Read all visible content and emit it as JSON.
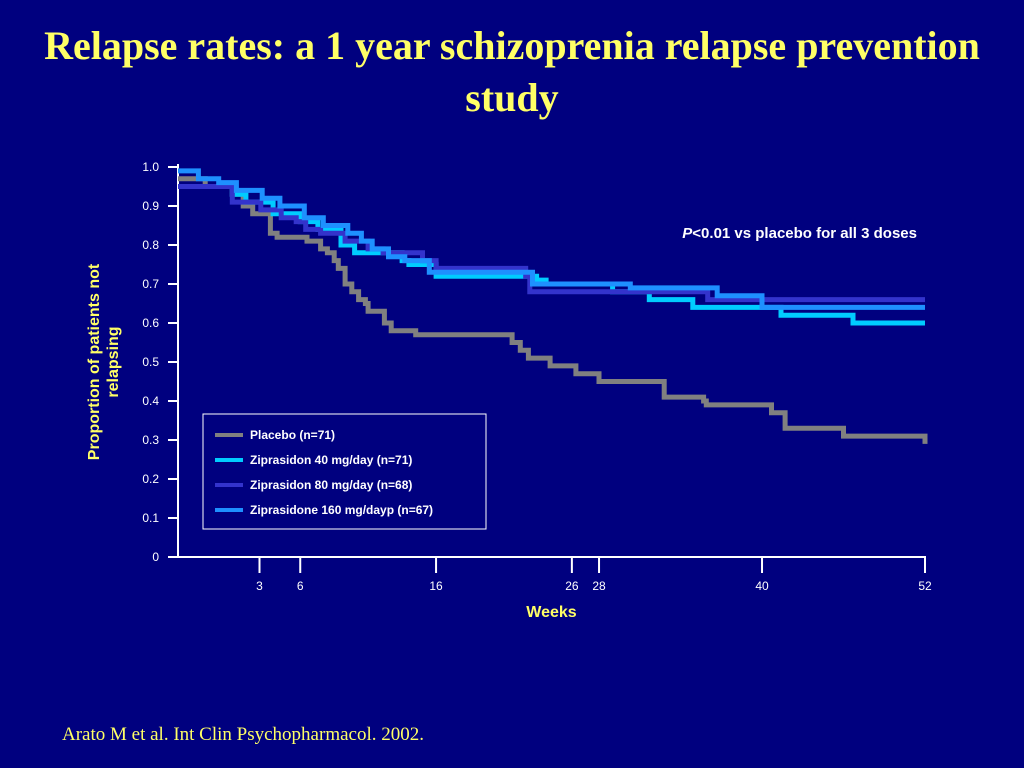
{
  "slide": {
    "title": "Relapse rates: a 1 year schizoprenia relapse prevention study",
    "citation": "Arato M et al. Int Clin Psychopharmacol. 2002."
  },
  "chart_data": {
    "type": "line",
    "step": true,
    "xlabel": "Weeks",
    "ylabel": "Proportion of patients not relapsing",
    "xlim": [
      -3,
      52
    ],
    "ylim": [
      0,
      1.0
    ],
    "x_ticks": [
      3,
      6,
      16,
      26,
      28,
      40,
      52
    ],
    "y_ticks": [
      0,
      0.1,
      0.2,
      0.3,
      0.4,
      0.5,
      0.6,
      0.7,
      0.8,
      0.9,
      1.0
    ],
    "y_tick_labels": [
      "0",
      "0.1",
      "0.2",
      "0.3",
      "0.4",
      "0.5",
      "0.6",
      "0.7",
      "0.8",
      "0.9",
      "1.0"
    ],
    "grid": false,
    "legend_position": "lower-left",
    "annotation": {
      "italic_part": "P",
      "rest": "<0.01 vs placebo for all 3 doses"
    },
    "series": [
      {
        "name": "Placebo (n=71)",
        "color": "#808080",
        "x": [
          -3,
          -1,
          1,
          1.8,
          2.5,
          3.8,
          4.3,
          6.5,
          7.5,
          8,
          8.5,
          8.8,
          9.3,
          9.8,
          10.3,
          10.8,
          11,
          12.2,
          12.7,
          14.5,
          14.7,
          15.3,
          16.2,
          21.6,
          22.2,
          22.8,
          24.4,
          26.3,
          28,
          32.7,
          32.8,
          35.7,
          35.9,
          38.3,
          40.7,
          41.7,
          46,
          52
        ],
        "y": [
          0.97,
          0.95,
          0.93,
          0.9,
          0.88,
          0.83,
          0.82,
          0.81,
          0.79,
          0.78,
          0.76,
          0.74,
          0.7,
          0.68,
          0.66,
          0.65,
          0.63,
          0.6,
          0.58,
          0.57,
          0.57,
          0.57,
          0.57,
          0.55,
          0.53,
          0.51,
          0.49,
          0.47,
          0.45,
          0.45,
          0.41,
          0.4,
          0.39,
          0.39,
          0.37,
          0.33,
          0.31,
          0.29
        ]
      },
      {
        "name": "Ziprasidon 40 mg/day (n=71)",
        "color": "#00ccff",
        "x": [
          -3,
          1,
          2,
          4,
          6,
          7.3,
          9,
          10,
          13.5,
          14,
          16,
          23.4,
          24.1,
          29,
          31.7,
          34.9,
          41.4,
          46.7,
          52
        ],
        "y": [
          0.95,
          0.93,
          0.91,
          0.88,
          0.86,
          0.84,
          0.8,
          0.78,
          0.76,
          0.75,
          0.72,
          0.71,
          0.7,
          0.68,
          0.66,
          0.64,
          0.62,
          0.6,
          0.6
        ]
      },
      {
        "name": "Ziprasidon 80 mg/day (n=68)",
        "color": "#3333cc",
        "x": [
          -3,
          1,
          3.1,
          4.6,
          5.7,
          6.4,
          7.5,
          9.3,
          11,
          12.1,
          15,
          16,
          22.6,
          22.9,
          28.5,
          36,
          48.6,
          52
        ],
        "y": [
          0.95,
          0.91,
          0.89,
          0.87,
          0.86,
          0.84,
          0.83,
          0.81,
          0.79,
          0.78,
          0.76,
          0.74,
          0.72,
          0.68,
          0.68,
          0.66,
          0.66,
          0.66
        ]
      },
      {
        "name": "Ziprasidone 160 mg/dayp (n=67)",
        "color": "#1e90ff",
        "x": [
          -3,
          -1.5,
          0,
          1.3,
          3.2,
          4.5,
          6.3,
          7.7,
          9.5,
          10.5,
          11.3,
          12.5,
          13.7,
          15.5,
          23.1,
          30.3,
          36.7,
          40,
          52
        ],
        "y": [
          0.99,
          0.97,
          0.96,
          0.94,
          0.92,
          0.9,
          0.87,
          0.85,
          0.83,
          0.81,
          0.79,
          0.77,
          0.76,
          0.73,
          0.7,
          0.69,
          0.67,
          0.64,
          0.64
        ]
      }
    ]
  }
}
